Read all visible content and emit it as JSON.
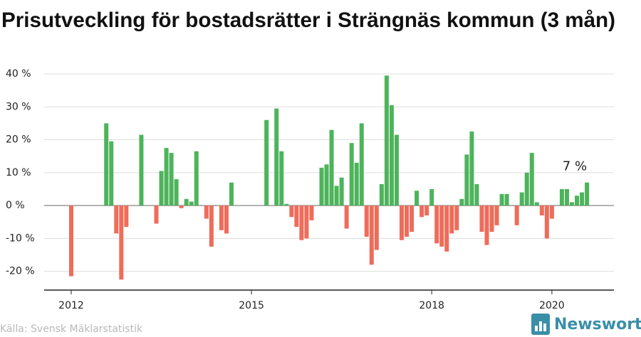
{
  "chart_data": {
    "type": "bar",
    "title": "Prisutveckling för bostadsrätter i Strängnäs kommun (3 mån)",
    "source": "Källa: Svensk Mäklarstatistik",
    "logo": "Newsworthy",
    "colors": {
      "positive": "#4db45b",
      "negative": "#ef6c5a"
    },
    "categories": [
      "2012",
      null,
      null,
      null,
      null,
      null,
      null,
      null,
      null,
      null,
      null,
      null,
      null,
      null,
      null,
      null,
      null,
      null,
      null,
      null,
      null,
      null,
      null,
      null,
      null,
      null,
      null,
      null,
      null,
      null,
      null,
      null,
      null,
      null,
      null,
      null,
      "2015",
      null,
      null,
      null,
      null,
      null,
      null,
      null,
      null,
      null,
      null,
      null,
      null,
      null,
      null,
      null,
      null,
      null,
      null,
      null,
      null,
      null,
      null,
      null,
      null,
      null,
      null,
      null,
      null,
      null,
      null,
      null,
      null,
      null,
      null,
      null,
      "2018",
      null,
      null,
      null,
      null,
      null,
      null,
      null,
      null,
      null,
      null,
      null,
      null,
      null,
      null,
      null,
      null,
      null,
      null,
      null,
      null,
      null,
      null,
      null,
      "2020",
      null,
      null,
      null,
      null,
      null,
      null,
      null
    ],
    "values": [
      -21.5,
      null,
      null,
      null,
      null,
      null,
      null,
      25,
      19.5,
      -8.5,
      -22.5,
      -6.5,
      null,
      null,
      21.5,
      null,
      null,
      -5.5,
      10.5,
      17.5,
      16,
      8,
      -0.8,
      2,
      1.2,
      16.5,
      null,
      -4,
      -12.5,
      null,
      -7.5,
      -8.5,
      7,
      null,
      null,
      null,
      null,
      null,
      null,
      26,
      null,
      29.5,
      16.5,
      0.5,
      -3.5,
      -6.5,
      -10.5,
      -10,
      -4.5,
      null,
      11.5,
      12.5,
      23,
      6,
      8.5,
      -7,
      19,
      13,
      25,
      -9.5,
      -18,
      -13.5,
      6.5,
      39.5,
      30.5,
      21.5,
      -10.5,
      -9.5,
      -8,
      4.5,
      -3.5,
      -3,
      5,
      -11.5,
      -12.5,
      -14,
      -8.5,
      -7.5,
      2,
      15.5,
      22.5,
      6.5,
      -8,
      -12,
      -8,
      -6,
      3.5,
      3.5,
      null,
      -6,
      4,
      10,
      16,
      1,
      -3,
      -10,
      -4,
      null,
      5,
      5,
      1,
      3,
      4,
      7
    ],
    "value_labels": [
      null,
      null,
      null,
      null,
      null,
      null,
      null,
      null,
      null,
      null,
      null,
      null,
      null,
      null,
      null,
      null,
      null,
      null,
      null,
      null,
      null,
      null,
      null,
      null,
      null,
      null,
      null,
      null,
      null,
      null,
      null,
      null,
      null,
      null,
      null,
      null,
      null,
      null,
      null,
      null,
      null,
      null,
      null,
      null,
      null,
      null,
      null,
      null,
      null,
      null,
      null,
      null,
      null,
      null,
      null,
      null,
      null,
      null,
      null,
      null,
      null,
      null,
      null,
      null,
      null,
      null,
      null,
      null,
      null,
      null,
      null,
      null,
      null,
      null,
      null,
      null,
      null,
      null,
      null,
      null,
      null,
      null,
      null,
      null,
      null,
      null,
      null,
      null,
      null,
      null,
      null,
      null,
      null,
      null,
      null,
      null,
      null,
      null,
      null,
      null,
      null,
      null,
      null,
      "7 %"
    ],
    "ylim": [
      -25.7,
      44
    ],
    "yticks": [
      {
        "value": -20,
        "label": "-20 %"
      },
      {
        "value": -10,
        "label": "-10 %"
      },
      {
        "value": 0,
        "label": "0 %"
      },
      {
        "value": 10,
        "label": "10 %"
      },
      {
        "value": 20,
        "label": "20 %"
      },
      {
        "value": 30,
        "label": "30 %"
      },
      {
        "value": 40,
        "label": "40 %"
      }
    ],
    "grid": true
  }
}
